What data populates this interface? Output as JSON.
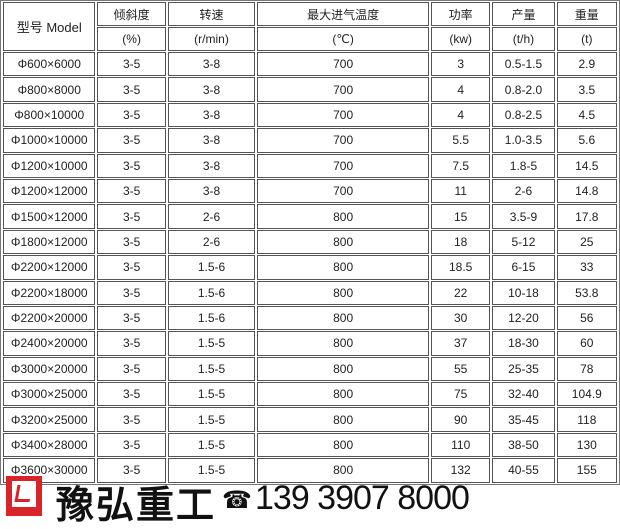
{
  "table": {
    "headers": [
      "型号 Model",
      "倾斜度",
      "转速",
      "最大进气温度",
      "功率",
      "产量",
      "重量"
    ],
    "units": [
      "(%)",
      "(r/min)",
      "(℃)",
      "(kw)",
      "(t/h)",
      "(t)"
    ],
    "rows": [
      [
        "Φ600×6000",
        "3-5",
        "3-8",
        "700",
        "3",
        "0.5-1.5",
        "2.9"
      ],
      [
        "Φ800×8000",
        "3-5",
        "3-8",
        "700",
        "4",
        "0.8-2.0",
        "3.5"
      ],
      [
        "Φ800×10000",
        "3-5",
        "3-8",
        "700",
        "4",
        "0.8-2.5",
        "4.5"
      ],
      [
        "Φ1000×10000",
        "3-5",
        "3-8",
        "700",
        "5.5",
        "1.0-3.5",
        "5.6"
      ],
      [
        "Φ1200×10000",
        "3-5",
        "3-8",
        "700",
        "7.5",
        "1.8-5",
        "14.5"
      ],
      [
        "Φ1200×12000",
        "3-5",
        "3-8",
        "700",
        "11",
        "2-6",
        "14.8"
      ],
      [
        "Φ1500×12000",
        "3-5",
        "2-6",
        "800",
        "15",
        "3.5-9",
        "17.8"
      ],
      [
        "Φ1800×12000",
        "3-5",
        "2-6",
        "800",
        "18",
        "5-12",
        "25"
      ],
      [
        "Φ2200×12000",
        "3-5",
        "1.5-6",
        "800",
        "18.5",
        "6-15",
        "33"
      ],
      [
        "Φ2200×18000",
        "3-5",
        "1.5-6",
        "800",
        "22",
        "10-18",
        "53.8"
      ],
      [
        "Φ2200×20000",
        "3-5",
        "1.5-6",
        "800",
        "30",
        "12-20",
        "56"
      ],
      [
        "Φ2400×20000",
        "3-5",
        "1.5-5",
        "800",
        "37",
        "18-30",
        "60"
      ],
      [
        "Φ3000×20000",
        "3-5",
        "1.5-5",
        "800",
        "55",
        "25-35",
        "78"
      ],
      [
        "Φ3000×25000",
        "3-5",
        "1.5-5",
        "800",
        "75",
        "32-40",
        "104.9"
      ],
      [
        "Φ3200×25000",
        "3-5",
        "1.5-5",
        "800",
        "90",
        "35-45",
        "118"
      ],
      [
        "Φ3400×28000",
        "3-5",
        "1.5-5",
        "800",
        "110",
        "38-50",
        "130"
      ],
      [
        "Φ3600×30000",
        "3-5",
        "1.5-5",
        "800",
        "132",
        "40-55",
        "155"
      ]
    ]
  },
  "footer": {
    "brand": "豫弘重工",
    "phone": "139 3907 8000",
    "phone_icon": "telephone-icon",
    "logo_color": "#d9232a"
  }
}
